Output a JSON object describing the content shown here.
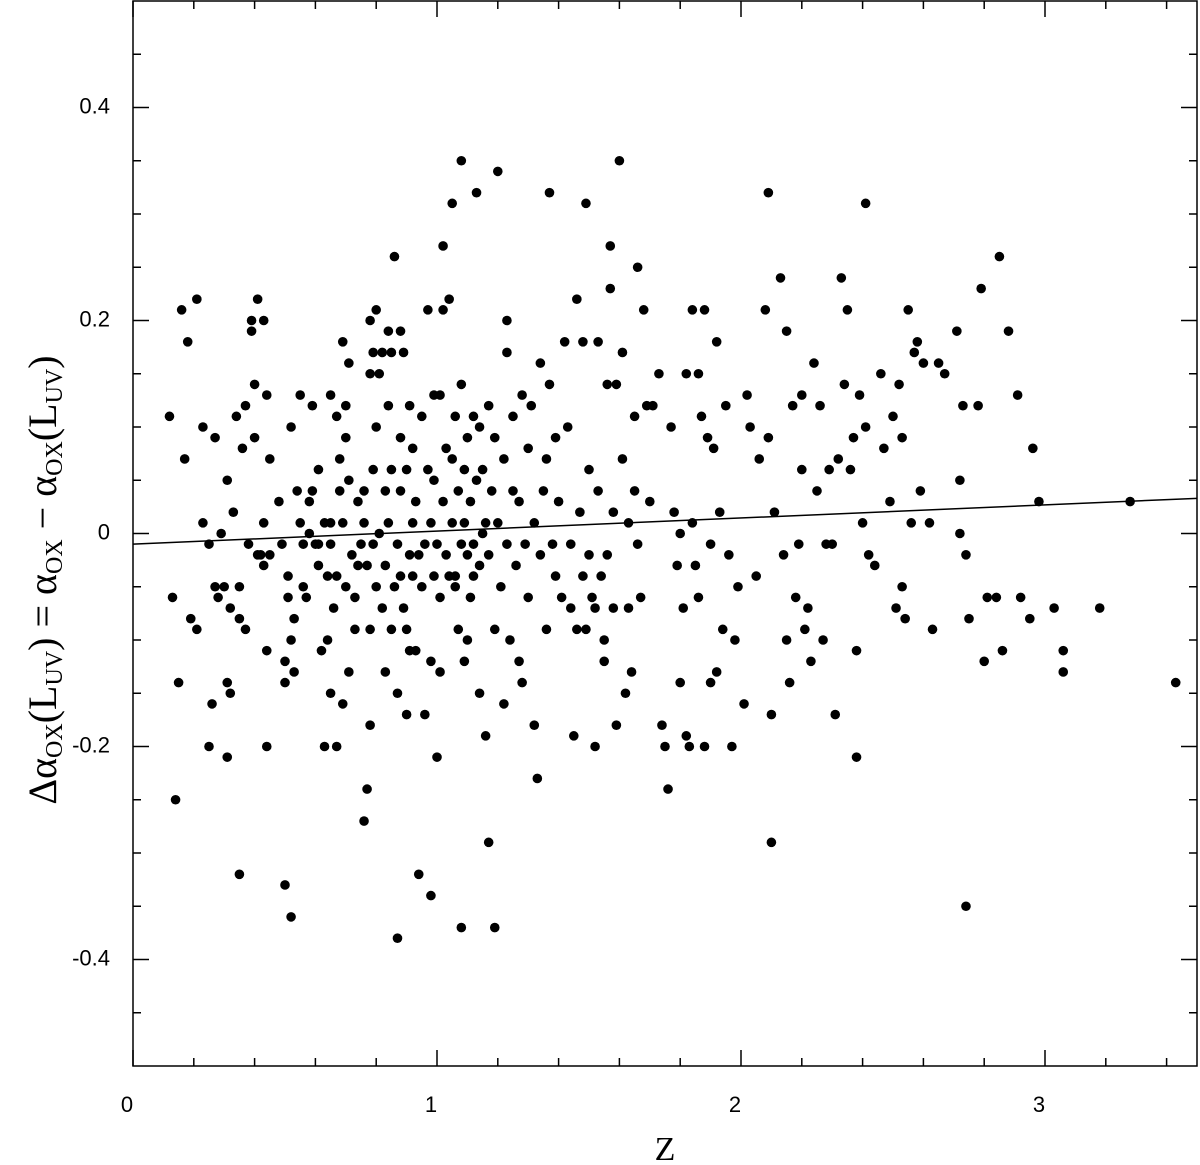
{
  "chart_data": {
    "type": "scatter",
    "xlabel": "Z",
    "ylabel": [
      {
        "text": "Δα"
      },
      {
        "text": "OX",
        "sub": true
      },
      {
        "text": "(L"
      },
      {
        "text": "UV",
        "sub": true
      },
      {
        "text": ") = α"
      },
      {
        "text": "OX",
        "sub": true
      },
      {
        "text": " − α"
      },
      {
        "text": "OX",
        "sub": true
      },
      {
        "text": "(L"
      },
      {
        "text": "UV",
        "sub": true
      },
      {
        "text": ")"
      }
    ],
    "xlim": [
      0,
      3.5
    ],
    "ylim": [
      -0.5,
      0.5
    ],
    "xticks": [
      0,
      1,
      2,
      3
    ],
    "yticks": [
      -0.4,
      -0.2,
      0,
      0.2,
      0.4
    ],
    "xminorticks": [
      0.2,
      0.4,
      0.6,
      0.8,
      1.2,
      1.4,
      1.6,
      1.8,
      2.2,
      2.4,
      2.6,
      2.8,
      3.2,
      3.4
    ],
    "yminorticks": [
      -0.45,
      -0.35,
      -0.3,
      -0.25,
      -0.15,
      -0.1,
      -0.05,
      0.05,
      0.1,
      0.15,
      0.25,
      0.3,
      0.35,
      0.45
    ],
    "series": [
      {
        "type": "scatter",
        "color": "#000000",
        "x": [
          0.12,
          0.13,
          0.14,
          0.15,
          0.16,
          0.17,
          0.18,
          0.19,
          0.21,
          0.21,
          0.23,
          0.23,
          0.25,
          0.25,
          0.26,
          0.27,
          0.27,
          0.28,
          0.29,
          0.3,
          0.31,
          0.31,
          0.31,
          0.32,
          0.32,
          0.33,
          0.34,
          0.35,
          0.35,
          0.35,
          0.36,
          0.37,
          0.37,
          0.38,
          0.39,
          0.39,
          0.4,
          0.4,
          0.41,
          0.41,
          0.42,
          0.43,
          0.43,
          0.43,
          0.44,
          0.44,
          0.44,
          0.45,
          0.45,
          0.48,
          0.49,
          0.5,
          0.5,
          0.5,
          0.51,
          0.51,
          0.52,
          0.52,
          0.52,
          0.53,
          0.53,
          0.54,
          0.55,
          0.55,
          0.56,
          0.56,
          0.57,
          0.58,
          0.58,
          0.59,
          0.59,
          0.6,
          0.61,
          0.61,
          0.61,
          0.62,
          0.63,
          0.63,
          0.64,
          0.64,
          0.65,
          0.65,
          0.65,
          0.65,
          0.66,
          0.67,
          0.67,
          0.67,
          0.68,
          0.68,
          0.69,
          0.69,
          0.69,
          0.7,
          0.7,
          0.7,
          0.71,
          0.71,
          0.71,
          0.72,
          0.73,
          0.73,
          0.74,
          0.74,
          0.75,
          0.76,
          0.76,
          0.76,
          0.77,
          0.77,
          0.78,
          0.78,
          0.78,
          0.78,
          0.79,
          0.79,
          0.79,
          0.8,
          0.8,
          0.8,
          0.81,
          0.81,
          0.82,
          0.82,
          0.83,
          0.83,
          0.83,
          0.84,
          0.84,
          0.84,
          0.85,
          0.85,
          0.85,
          0.86,
          0.86,
          0.87,
          0.87,
          0.87,
          0.88,
          0.88,
          0.88,
          0.88,
          0.89,
          0.89,
          0.9,
          0.9,
          0.9,
          0.91,
          0.91,
          0.91,
          0.92,
          0.92,
          0.92,
          0.93,
          0.93,
          0.94,
          0.94,
          0.95,
          0.95,
          0.96,
          0.96,
          0.97,
          0.97,
          0.98,
          0.98,
          0.98,
          0.99,
          0.99,
          0.99,
          1.0,
          1.0,
          1.01,
          1.01,
          1.01,
          1.02,
          1.02,
          1.02,
          1.03,
          1.03,
          1.04,
          1.04,
          1.05,
          1.05,
          1.05,
          1.06,
          1.06,
          1.06,
          1.07,
          1.07,
          1.08,
          1.08,
          1.08,
          1.08,
          1.09,
          1.09,
          1.09,
          1.1,
          1.1,
          1.1,
          1.11,
          1.11,
          1.12,
          1.12,
          1.12,
          1.13,
          1.13,
          1.14,
          1.14,
          1.14,
          1.15,
          1.15,
          1.16,
          1.16,
          1.17,
          1.17,
          1.17,
          1.18,
          1.19,
          1.19,
          1.19,
          1.2,
          1.2,
          1.21,
          1.22,
          1.22,
          1.23,
          1.23,
          1.23,
          1.24,
          1.25,
          1.25,
          1.26,
          1.27,
          1.27,
          1.28,
          1.28,
          1.29,
          1.3,
          1.3,
          1.31,
          1.32,
          1.32,
          1.33,
          1.34,
          1.34,
          1.35,
          1.36,
          1.36,
          1.37,
          1.37,
          1.38,
          1.39,
          1.39,
          1.4,
          1.41,
          1.42,
          1.43,
          1.44,
          1.44,
          1.45,
          1.46,
          1.46,
          1.47,
          1.48,
          1.48,
          1.49,
          1.49,
          1.5,
          1.5,
          1.51,
          1.52,
          1.52,
          1.53,
          1.53,
          1.54,
          1.55,
          1.55,
          1.56,
          1.56,
          1.57,
          1.57,
          1.58,
          1.58,
          1.59,
          1.59,
          1.6,
          1.61,
          1.61,
          1.62,
          1.63,
          1.63,
          1.64,
          1.65,
          1.65,
          1.66,
          1.66,
          1.67,
          1.68,
          1.69,
          1.7,
          1.71,
          1.73,
          1.74,
          1.75,
          1.76,
          1.77,
          1.78,
          1.79,
          1.8,
          1.8,
          1.81,
          1.82,
          1.82,
          1.83,
          1.84,
          1.84,
          1.85,
          1.86,
          1.86,
          1.87,
          1.88,
          1.88,
          1.89,
          1.9,
          1.9,
          1.91,
          1.92,
          1.92,
          1.93,
          1.94,
          1.95,
          1.96,
          1.97,
          1.98,
          1.99,
          2.01,
          2.02,
          2.03,
          2.05,
          2.06,
          2.08,
          2.09,
          2.09,
          2.1,
          2.1,
          2.11,
          2.13,
          2.14,
          2.15,
          2.15,
          2.16,
          2.17,
          2.18,
          2.19,
          2.2,
          2.2,
          2.21,
          2.22,
          2.23,
          2.24,
          2.25,
          2.26,
          2.27,
          2.28,
          2.29,
          2.3,
          2.31,
          2.32,
          2.33,
          2.34,
          2.35,
          2.36,
          2.37,
          2.38,
          2.38,
          2.39,
          2.4,
          2.41,
          2.41,
          2.42,
          2.44,
          2.46,
          2.47,
          2.49,
          2.5,
          2.51,
          2.52,
          2.53,
          2.53,
          2.54,
          2.55,
          2.56,
          2.57,
          2.58,
          2.59,
          2.6,
          2.62,
          2.63,
          2.65,
          2.67,
          2.71,
          2.72,
          2.72,
          2.73,
          2.74,
          2.75,
          2.74,
          2.78,
          2.79,
          2.8,
          2.81,
          2.84,
          2.85,
          2.86,
          2.88,
          2.91,
          2.92,
          2.95,
          2.96,
          2.98,
          3.03,
          3.06,
          3.06,
          3.18,
          3.28,
          3.43
        ],
        "values": [
          0.11,
          -0.06,
          -0.25,
          -0.14,
          0.21,
          0.07,
          0.18,
          -0.08,
          0.22,
          -0.09,
          0.01,
          0.1,
          -0.01,
          -0.2,
          -0.16,
          -0.05,
          0.09,
          -0.06,
          0.0,
          -0.05,
          -0.14,
          0.05,
          -0.21,
          -0.15,
          -0.07,
          0.02,
          0.11,
          -0.32,
          -0.05,
          -0.08,
          0.08,
          0.12,
          -0.09,
          -0.01,
          0.2,
          0.19,
          0.14,
          0.09,
          -0.02,
          0.22,
          -0.02,
          -0.03,
          0.2,
          0.01,
          0.13,
          -0.11,
          -0.2,
          0.07,
          -0.02,
          0.03,
          -0.01,
          -0.12,
          -0.33,
          -0.14,
          -0.04,
          -0.06,
          -0.36,
          -0.1,
          0.1,
          -0.13,
          -0.08,
          0.04,
          0.01,
          0.13,
          -0.01,
          -0.05,
          -0.06,
          0.03,
          0.0,
          0.12,
          0.04,
          -0.01,
          0.06,
          -0.03,
          -0.01,
          -0.11,
          -0.2,
          0.01,
          -0.1,
          -0.04,
          0.13,
          -0.15,
          0.01,
          -0.01,
          -0.07,
          -0.2,
          0.11,
          -0.04,
          0.04,
          0.07,
          -0.16,
          0.18,
          0.01,
          -0.05,
          0.09,
          0.12,
          0.05,
          -0.13,
          0.16,
          -0.02,
          -0.09,
          -0.06,
          0.03,
          -0.03,
          -0.01,
          0.01,
          0.04,
          -0.27,
          -0.24,
          -0.03,
          -0.09,
          0.2,
          0.15,
          -0.18,
          0.06,
          -0.01,
          0.17,
          0.1,
          0.21,
          -0.05,
          0.15,
          0.0,
          0.17,
          -0.07,
          -0.13,
          0.04,
          -0.03,
          0.19,
          0.12,
          0.01,
          0.17,
          -0.09,
          0.06,
          -0.05,
          0.26,
          -0.01,
          -0.38,
          -0.15,
          0.19,
          0.09,
          0.04,
          -0.04,
          -0.07,
          0.17,
          -0.09,
          0.06,
          -0.17,
          -0.02,
          -0.11,
          0.12,
          0.01,
          0.08,
          -0.04,
          0.03,
          -0.11,
          -0.02,
          -0.32,
          -0.05,
          0.11,
          -0.01,
          -0.17,
          0.21,
          0.06,
          -0.12,
          0.01,
          -0.34,
          0.13,
          -0.04,
          0.05,
          -0.01,
          -0.21,
          -0.13,
          0.13,
          -0.06,
          0.03,
          0.21,
          0.27,
          -0.02,
          0.08,
          -0.04,
          0.22,
          0.31,
          0.01,
          0.07,
          -0.04,
          0.11,
          -0.05,
          0.04,
          -0.09,
          -0.01,
          0.35,
          -0.37,
          0.14,
          -0.12,
          0.06,
          0.01,
          -0.02,
          -0.1,
          0.09,
          -0.06,
          0.03,
          0.11,
          -0.01,
          -0.04,
          0.32,
          0.05,
          -0.03,
          0.1,
          -0.15,
          0.0,
          0.06,
          0.01,
          -0.19,
          0.12,
          -0.29,
          -0.02,
          0.04,
          -0.37,
          -0.09,
          0.09,
          0.34,
          0.01,
          -0.05,
          0.07,
          -0.16,
          0.2,
          0.17,
          -0.01,
          -0.1,
          0.04,
          0.11,
          -0.03,
          -0.12,
          0.03,
          -0.14,
          0.13,
          -0.01,
          0.08,
          -0.06,
          0.12,
          -0.18,
          0.01,
          -0.23,
          -0.02,
          0.16,
          0.04,
          -0.09,
          0.07,
          0.14,
          0.32,
          -0.01,
          -0.04,
          0.09,
          0.03,
          -0.06,
          0.18,
          0.1,
          -0.01,
          -0.07,
          -0.19,
          -0.09,
          0.22,
          0.02,
          0.18,
          -0.04,
          -0.09,
          0.31,
          -0.02,
          0.06,
          -0.06,
          -0.2,
          -0.07,
          0.04,
          0.18,
          -0.04,
          -0.1,
          -0.12,
          0.14,
          -0.02,
          0.27,
          0.23,
          -0.07,
          0.02,
          -0.18,
          0.14,
          0.35,
          0.17,
          0.07,
          -0.15,
          -0.07,
          0.01,
          -0.13,
          0.11,
          0.04,
          0.25,
          -0.01,
          -0.06,
          0.21,
          0.12,
          0.03,
          0.12,
          0.15,
          -0.18,
          -0.2,
          -0.24,
          0.1,
          0.02,
          -0.03,
          0.0,
          -0.14,
          -0.07,
          0.15,
          -0.19,
          -0.2,
          0.21,
          0.01,
          -0.03,
          0.15,
          -0.06,
          0.11,
          0.21,
          -0.2,
          0.09,
          -0.14,
          -0.01,
          0.08,
          -0.13,
          0.18,
          0.02,
          -0.09,
          0.12,
          -0.02,
          -0.2,
          -0.1,
          -0.05,
          -0.16,
          0.13,
          0.1,
          -0.04,
          0.07,
          0.21,
          0.09,
          0.32,
          -0.29,
          -0.17,
          0.02,
          0.24,
          -0.02,
          0.19,
          -0.1,
          -0.14,
          0.12,
          -0.06,
          -0.01,
          0.06,
          0.13,
          -0.09,
          -0.07,
          -0.12,
          0.16,
          0.04,
          0.12,
          -0.1,
          -0.01,
          0.06,
          -0.01,
          -0.17,
          0.07,
          0.24,
          0.14,
          0.21,
          0.06,
          0.09,
          -0.11,
          -0.21,
          0.13,
          0.01,
          0.1,
          0.31,
          -0.02,
          -0.03,
          0.15,
          0.08,
          0.03,
          0.11,
          -0.07,
          0.14,
          -0.05,
          0.09,
          -0.08,
          0.21,
          0.01,
          0.17,
          0.18,
          0.04,
          0.16,
          0.01,
          -0.09,
          0.16,
          0.15,
          0.19,
          0.05,
          0.0,
          0.12,
          -0.35,
          -0.08,
          -0.02,
          0.12,
          0.23,
          -0.12,
          -0.06,
          -0.06,
          0.26,
          -0.11,
          0.19,
          0.13,
          -0.06,
          -0.08,
          0.08,
          0.03,
          -0.07,
          -0.13,
          -0.11,
          -0.07,
          0.03,
          -0.14
        ]
      },
      {
        "type": "line",
        "color": "#000000",
        "x": [
          0,
          3.5
        ],
        "values": [
          -0.01,
          0.033
        ]
      }
    ]
  }
}
